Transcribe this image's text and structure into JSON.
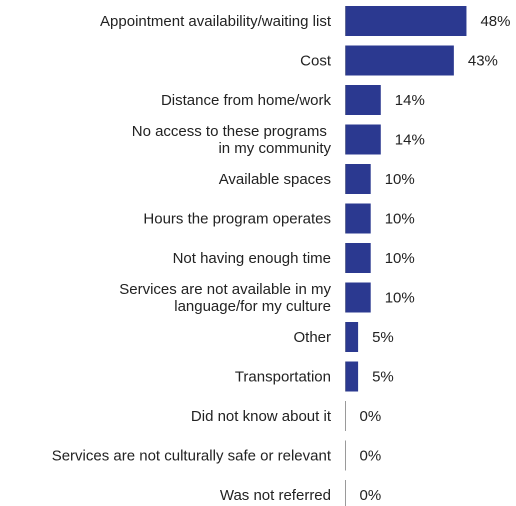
{
  "chart_data": {
    "type": "bar",
    "orientation": "horizontal",
    "title": "",
    "xlabel": "",
    "ylabel": "",
    "xlim": [
      0,
      50
    ],
    "grid": false,
    "legend": "none",
    "bar_color": "#2b3990",
    "categories": [
      "Appointment availability/waiting list",
      "Cost",
      "Distance from home/work",
      "No access to these programs \nin my community",
      "Available spaces",
      "Hours the program operates",
      "Not having enough time",
      "Services are not available in my\nlanguage/for my culture",
      "Other",
      "Transportation",
      "Did not know about it",
      "Services are not culturally safe or relevant",
      "Was not referred"
    ],
    "values": [
      48,
      43,
      14,
      14,
      10,
      10,
      10,
      10,
      5,
      5,
      0,
      0,
      0
    ],
    "value_labels": [
      "48%",
      "43%",
      "14%",
      "14%",
      "10%",
      "10%",
      "10%",
      "10%",
      "5%",
      "5%",
      "0%",
      "0%",
      "0%"
    ]
  }
}
